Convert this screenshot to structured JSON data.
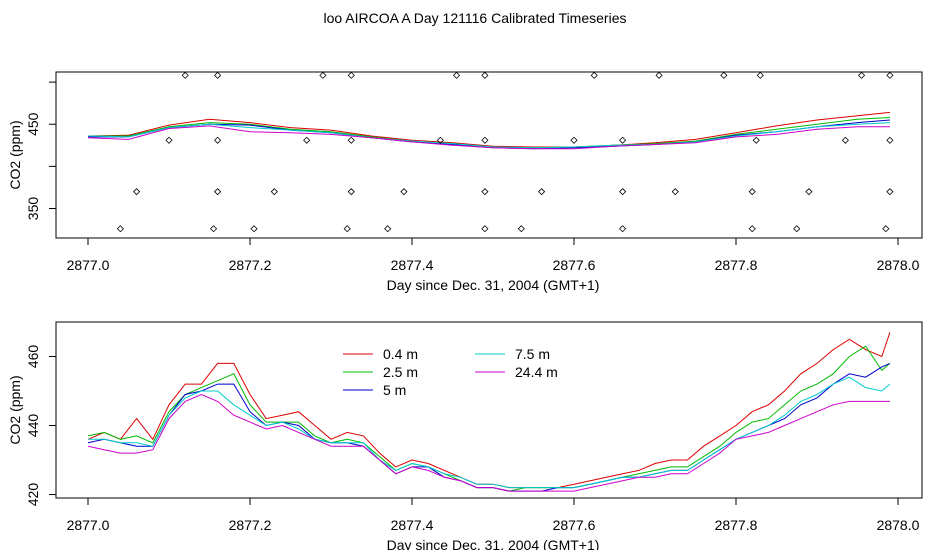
{
  "title": "loo AIRCOA A  Day 121116  Calibrated Timeseries",
  "chart_data": [
    {
      "type": "line",
      "panel": "top",
      "xlabel": "Day since Dec. 31, 2004 (GMT+1)",
      "ylabel": "CO2 (ppm)",
      "xlim": [
        2877.0,
        2878.0
      ],
      "ylim": [
        315,
        512
      ],
      "xticks": [
        "2877.0",
        "2877.2",
        "2877.4",
        "2877.6",
        "2877.8",
        "2878.0"
      ],
      "yticks": [
        "350",
        "450"
      ],
      "series": [
        {
          "color": "#dd0000",
          "x": [
            2877.0,
            2877.05,
            2877.1,
            2877.15,
            2877.2,
            2877.25,
            2877.3,
            2877.35,
            2877.4,
            2877.45,
            2877.5,
            2877.55,
            2877.6,
            2877.65,
            2877.7,
            2877.75,
            2877.8,
            2877.85,
            2877.9,
            2877.95,
            2877.99
          ],
          "y": [
            436,
            437,
            449,
            456,
            452,
            446,
            443,
            436,
            431,
            428,
            424,
            423,
            423,
            425,
            428,
            432,
            440,
            448,
            455,
            460,
            464
          ]
        },
        {
          "color": "#00bb00",
          "x": [
            2877.0,
            2877.05,
            2877.1,
            2877.15,
            2877.2,
            2877.25,
            2877.3,
            2877.35,
            2877.4,
            2877.45,
            2877.5,
            2877.55,
            2877.6,
            2877.65,
            2877.7,
            2877.75,
            2877.8,
            2877.85,
            2877.9,
            2877.95,
            2877.99
          ],
          "y": [
            436,
            436,
            447,
            452,
            450,
            444,
            441,
            435,
            430,
            427,
            423,
            422,
            423,
            425,
            427,
            430,
            438,
            444,
            450,
            456,
            458
          ]
        },
        {
          "color": "#0000cc",
          "x": [
            2877.0,
            2877.05,
            2877.1,
            2877.15,
            2877.2,
            2877.25,
            2877.3,
            2877.35,
            2877.4,
            2877.45,
            2877.5,
            2877.55,
            2877.6,
            2877.65,
            2877.7,
            2877.75,
            2877.8,
            2877.85,
            2877.9,
            2877.95,
            2877.99
          ],
          "y": [
            435,
            435,
            446,
            450,
            449,
            443,
            440,
            434,
            429,
            426,
            422,
            421,
            422,
            424,
            426,
            429,
            437,
            441,
            447,
            452,
            455
          ]
        },
        {
          "color": "#00cccc",
          "x": [
            2877.0,
            2877.05,
            2877.1,
            2877.15,
            2877.2,
            2877.25,
            2877.3,
            2877.35,
            2877.4,
            2877.45,
            2877.5,
            2877.55,
            2877.6,
            2877.65,
            2877.7,
            2877.75,
            2877.8,
            2877.85,
            2877.9,
            2877.95,
            2877.99
          ],
          "y": [
            436,
            435,
            446,
            450,
            446,
            443,
            440,
            434,
            430,
            427,
            423,
            422,
            423,
            425,
            426,
            429,
            436,
            441,
            447,
            450,
            452
          ]
        },
        {
          "color": "#cc00cc",
          "x": [
            2877.0,
            2877.05,
            2877.1,
            2877.15,
            2877.2,
            2877.25,
            2877.3,
            2877.35,
            2877.4,
            2877.45,
            2877.5,
            2877.55,
            2877.6,
            2877.65,
            2877.7,
            2877.75,
            2877.8,
            2877.85,
            2877.9,
            2877.95,
            2877.99
          ],
          "y": [
            434,
            432,
            445,
            448,
            441,
            440,
            438,
            434,
            429,
            425,
            422,
            421,
            421,
            424,
            426,
            428,
            435,
            438,
            444,
            447,
            447
          ]
        }
      ],
      "points": {
        "x": [
          2877.04,
          2877.06,
          2877.1,
          2877.12,
          2877.155,
          2877.16,
          2877.16,
          2877.16,
          2877.205,
          2877.23,
          2877.27,
          2877.29,
          2877.32,
          2877.325,
          2877.325,
          2877.325,
          2877.37,
          2877.39,
          2877.435,
          2877.455,
          2877.49,
          2877.49,
          2877.49,
          2877.49,
          2877.535,
          2877.56,
          2877.6,
          2877.625,
          2877.66,
          2877.66,
          2877.66,
          2877.705,
          2877.725,
          2877.785,
          2877.82,
          2877.82,
          2877.825,
          2877.83,
          2877.875,
          2877.89,
          2877.935,
          2877.955,
          2877.985,
          2877.99,
          2877.99,
          2877.99
        ],
        "y": [
          326,
          370,
          431,
          508,
          326,
          370,
          431,
          508,
          326,
          370,
          431,
          508,
          326,
          370,
          431,
          508,
          326,
          370,
          431,
          508,
          326,
          370,
          431,
          508,
          326,
          370,
          431,
          508,
          326,
          370,
          431,
          508,
          370,
          508,
          326,
          370,
          431,
          508,
          326,
          370,
          431,
          508,
          326,
          370,
          431,
          508
        ]
      }
    },
    {
      "type": "line",
      "panel": "bottom",
      "xlabel": "Day since Dec. 31, 2004 (GMT+1)",
      "ylabel": "CO2 (ppm)",
      "xlim": [
        2877.0,
        2878.0
      ],
      "ylim": [
        419,
        470
      ],
      "xticks": [
        "2877.0",
        "2877.2",
        "2877.4",
        "2877.6",
        "2877.8",
        "2878.0"
      ],
      "yticks": [
        "420",
        "440",
        "460"
      ],
      "series": [
        {
          "name": "0.4 m",
          "color": "#dd0000",
          "x": [
            2877.0,
            2877.02,
            2877.04,
            2877.06,
            2877.08,
            2877.1,
            2877.12,
            2877.14,
            2877.16,
            2877.18,
            2877.2,
            2877.22,
            2877.24,
            2877.26,
            2877.28,
            2877.3,
            2877.32,
            2877.34,
            2877.36,
            2877.38,
            2877.4,
            2877.42,
            2877.44,
            2877.46,
            2877.48,
            2877.5,
            2877.52,
            2877.54,
            2877.56,
            2877.58,
            2877.6,
            2877.62,
            2877.64,
            2877.66,
            2877.68,
            2877.7,
            2877.72,
            2877.74,
            2877.76,
            2877.78,
            2877.8,
            2877.82,
            2877.84,
            2877.86,
            2877.88,
            2877.9,
            2877.92,
            2877.94,
            2877.96,
            2877.98,
            2877.99
          ],
          "y": [
            436,
            438,
            436,
            442,
            436,
            446,
            452,
            452,
            458,
            458,
            449,
            442,
            443,
            444,
            440,
            436,
            438,
            437,
            432,
            428,
            430,
            429,
            427,
            425,
            423,
            423,
            422,
            422,
            422,
            422,
            423,
            424,
            425,
            426,
            427,
            429,
            430,
            430,
            434,
            437,
            440,
            444,
            446,
            450,
            455,
            458,
            462,
            465,
            462,
            460,
            467
          ]
        },
        {
          "name": "2.5 m",
          "color": "#00bb00",
          "x": [
            2877.0,
            2877.02,
            2877.04,
            2877.06,
            2877.08,
            2877.1,
            2877.12,
            2877.14,
            2877.16,
            2877.18,
            2877.2,
            2877.22,
            2877.24,
            2877.26,
            2877.28,
            2877.3,
            2877.32,
            2877.34,
            2877.36,
            2877.38,
            2877.4,
            2877.42,
            2877.44,
            2877.46,
            2877.48,
            2877.5,
            2877.52,
            2877.54,
            2877.56,
            2877.58,
            2877.6,
            2877.62,
            2877.64,
            2877.66,
            2877.68,
            2877.7,
            2877.72,
            2877.74,
            2877.76,
            2877.78,
            2877.8,
            2877.82,
            2877.84,
            2877.86,
            2877.88,
            2877.9,
            2877.92,
            2877.94,
            2877.96,
            2877.98,
            2877.99
          ],
          "y": [
            437,
            438,
            436,
            437,
            435,
            444,
            449,
            451,
            453,
            455,
            446,
            441,
            441,
            441,
            437,
            435,
            436,
            435,
            431,
            427,
            429,
            428,
            426,
            424,
            422,
            422,
            421,
            422,
            422,
            422,
            422,
            423,
            424,
            425,
            426,
            427,
            428,
            428,
            431,
            434,
            438,
            441,
            442,
            446,
            450,
            452,
            455,
            460,
            463,
            456,
            458
          ]
        },
        {
          "name": "5 m",
          "color": "#0000cc",
          "x": [
            2877.0,
            2877.02,
            2877.04,
            2877.06,
            2877.08,
            2877.1,
            2877.12,
            2877.14,
            2877.16,
            2877.18,
            2877.2,
            2877.22,
            2877.24,
            2877.26,
            2877.28,
            2877.3,
            2877.32,
            2877.34,
            2877.36,
            2877.38,
            2877.4,
            2877.42,
            2877.44,
            2877.46,
            2877.48,
            2877.5,
            2877.52,
            2877.54,
            2877.56,
            2877.58,
            2877.6,
            2877.62,
            2877.64,
            2877.66,
            2877.68,
            2877.7,
            2877.72,
            2877.74,
            2877.76,
            2877.78,
            2877.8,
            2877.82,
            2877.84,
            2877.86,
            2877.88,
            2877.9,
            2877.92,
            2877.94,
            2877.96,
            2877.98,
            2877.99
          ],
          "y": [
            435,
            436,
            435,
            434,
            434,
            443,
            449,
            450,
            452,
            452,
            444,
            440,
            441,
            440,
            436,
            435,
            435,
            434,
            430,
            426,
            428,
            428,
            425,
            424,
            422,
            422,
            421,
            421,
            421,
            422,
            422,
            423,
            424,
            425,
            425,
            426,
            427,
            427,
            430,
            433,
            436,
            438,
            440,
            442,
            446,
            448,
            452,
            455,
            454,
            457,
            458
          ]
        },
        {
          "name": "7.5 m",
          "color": "#00cccc",
          "x": [
            2877.0,
            2877.02,
            2877.04,
            2877.06,
            2877.08,
            2877.1,
            2877.12,
            2877.14,
            2877.16,
            2877.18,
            2877.2,
            2877.22,
            2877.24,
            2877.26,
            2877.28,
            2877.3,
            2877.32,
            2877.34,
            2877.36,
            2877.38,
            2877.4,
            2877.42,
            2877.44,
            2877.46,
            2877.48,
            2877.5,
            2877.52,
            2877.54,
            2877.56,
            2877.58,
            2877.6,
            2877.62,
            2877.64,
            2877.66,
            2877.68,
            2877.7,
            2877.72,
            2877.74,
            2877.76,
            2877.78,
            2877.8,
            2877.82,
            2877.84,
            2877.86,
            2877.88,
            2877.9,
            2877.92,
            2877.94,
            2877.96,
            2877.98,
            2877.99
          ],
          "y": [
            436,
            436,
            435,
            435,
            434,
            443,
            448,
            450,
            450,
            446,
            443,
            440,
            441,
            439,
            436,
            435,
            435,
            435,
            430,
            427,
            429,
            428,
            426,
            425,
            423,
            423,
            422,
            422,
            422,
            422,
            422,
            423,
            424,
            425,
            425,
            426,
            427,
            427,
            430,
            433,
            436,
            438,
            440,
            443,
            447,
            449,
            452,
            454,
            451,
            450,
            452
          ]
        },
        {
          "name": "24.4 m",
          "color": "#cc00cc",
          "x": [
            2877.0,
            2877.02,
            2877.04,
            2877.06,
            2877.08,
            2877.1,
            2877.12,
            2877.14,
            2877.16,
            2877.18,
            2877.2,
            2877.22,
            2877.24,
            2877.26,
            2877.28,
            2877.3,
            2877.32,
            2877.34,
            2877.36,
            2877.38,
            2877.4,
            2877.42,
            2877.44,
            2877.46,
            2877.48,
            2877.5,
            2877.52,
            2877.54,
            2877.56,
            2877.58,
            2877.6,
            2877.62,
            2877.64,
            2877.66,
            2877.68,
            2877.7,
            2877.72,
            2877.74,
            2877.76,
            2877.78,
            2877.8,
            2877.82,
            2877.84,
            2877.86,
            2877.88,
            2877.9,
            2877.92,
            2877.94,
            2877.96,
            2877.98,
            2877.99
          ],
          "y": [
            434,
            433,
            432,
            432,
            433,
            442,
            447,
            449,
            447,
            443,
            441,
            439,
            440,
            438,
            436,
            434,
            434,
            434,
            430,
            426,
            428,
            427,
            425,
            424,
            422,
            422,
            421,
            421,
            421,
            421,
            421,
            422,
            423,
            424,
            425,
            425,
            426,
            426,
            429,
            432,
            436,
            437,
            438,
            440,
            442,
            444,
            446,
            447,
            447,
            447,
            447
          ]
        }
      ],
      "legend_position": "top-left inside plot"
    }
  ]
}
